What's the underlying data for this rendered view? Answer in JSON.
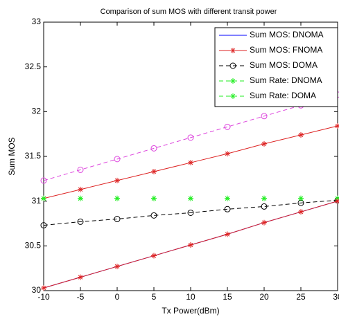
{
  "chart_data": {
    "type": "line",
    "title": "Comparison of sum MOS with different transit power",
    "xlabel": "Tx Power(dBm)",
    "ylabel": "Sum MOS",
    "x": [
      -10,
      -5,
      0,
      5,
      10,
      15,
      20,
      25,
      30
    ],
    "xlim": [
      -10,
      30
    ],
    "xticks": [
      -10,
      -5,
      0,
      5,
      10,
      15,
      20,
      25,
      30
    ],
    "ylim": [
      30,
      33
    ],
    "yticks": [
      30,
      30.5,
      31,
      31.5,
      32,
      32.5,
      33
    ],
    "grid": false,
    "legend": "upper right",
    "series": [
      {
        "name": "Sum MOS: DNOMA",
        "color": "#0000ff",
        "dash": false,
        "marker": "none",
        "values": [
          30.03,
          30.15,
          30.27,
          30.39,
          30.51,
          30.63,
          30.76,
          30.88,
          31.0
        ]
      },
      {
        "name": "Sum MOS: FNOMA",
        "color": "#dd2222",
        "dash": false,
        "marker": "star",
        "values": [
          31.03,
          31.13,
          31.23,
          31.33,
          31.43,
          31.53,
          31.64,
          31.74,
          31.84
        ]
      },
      {
        "name": "Sum MOS: DOMA",
        "color": "#000000",
        "dash": true,
        "marker": "circle",
        "values": [
          30.73,
          30.77,
          30.8,
          30.84,
          30.87,
          30.91,
          30.94,
          30.98,
          31.01
        ]
      },
      {
        "name": "Sum Rate: DNOMA",
        "color": "#22ee22",
        "dash": true,
        "marker": "star",
        "values": [
          31.03,
          31.03,
          31.03,
          31.03,
          31.03,
          31.03,
          31.03,
          31.03,
          31.03
        ]
      },
      {
        "name": "Sum Rate: DOMA",
        "color": "#22ee22",
        "dash": true,
        "marker": "star",
        "values": [
          31.03,
          31.03,
          31.03,
          31.03,
          31.03,
          31.03,
          31.03,
          31.03,
          31.03
        ]
      },
      {
        "color": "#dd2222",
        "dash": false,
        "marker": "star",
        "values": [
          30.03,
          30.15,
          30.27,
          30.39,
          30.51,
          30.63,
          30.76,
          30.88,
          31.0
        ]
      },
      {
        "color": "#dd44dd",
        "dash": true,
        "marker": "circle",
        "values": [
          31.23,
          31.35,
          31.47,
          31.59,
          31.71,
          31.83,
          31.95,
          32.07,
          32.19
        ]
      }
    ]
  }
}
